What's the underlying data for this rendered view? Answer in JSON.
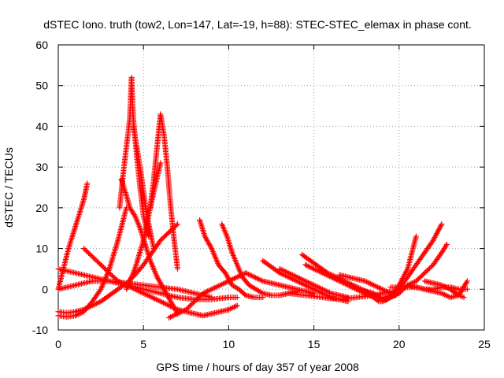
{
  "chart_data": {
    "type": "scatter",
    "title": "dSTEC Iono. truth (tow2, Lon=147, Lat=-19, h=88): STEC-STEC_elemax in phase cont.",
    "xlabel": "GPS time / hours of day 357 of year 2008",
    "ylabel": "dSTEC  / TECUs",
    "xlim": [
      0,
      25
    ],
    "ylim": [
      -10,
      60
    ],
    "xticks": [
      0,
      5,
      10,
      15,
      20,
      25
    ],
    "yticks": [
      -10,
      0,
      10,
      20,
      30,
      40,
      50,
      60
    ],
    "grid": true,
    "marker": "+",
    "color": "#ff0000",
    "series": [
      {
        "x": [
          0.0,
          0.3,
          0.6,
          0.9,
          1.2,
          1.5,
          1.7
        ],
        "y": [
          0.0,
          5.0,
          10.0,
          14.0,
          18.0,
          22.0,
          26.0
        ]
      },
      {
        "x": [
          0.0,
          0.5,
          1.0,
          1.5,
          2.0,
          2.5,
          3.0,
          3.5,
          4.0
        ],
        "y": [
          -6.5,
          -6.8,
          -6.5,
          -5.5,
          -3.0,
          0.0,
          5.0,
          12.0,
          20.0
        ]
      },
      {
        "x": [
          3.6,
          3.8,
          4.0,
          4.2,
          4.3,
          4.4,
          4.6,
          4.8,
          5.0,
          5.3
        ],
        "y": [
          20.0,
          28.0,
          35.0,
          42.0,
          52.0,
          42.0,
          33.0,
          25.0,
          18.0,
          13.0
        ]
      },
      {
        "x": [
          3.7,
          4.0,
          4.2,
          4.5,
          4.8,
          5.1,
          5.4,
          5.8,
          6.2,
          6.6,
          7.0
        ],
        "y": [
          27.0,
          23.0,
          20.0,
          18.0,
          15.0,
          11.0,
          7.0,
          3.0,
          0.0,
          -3.0,
          -6.0
        ]
      },
      {
        "x": [
          4.4,
          4.6,
          4.8,
          5.0,
          5.2,
          5.4,
          5.6
        ],
        "y": [
          40.0,
          35.0,
          30.0,
          24.0,
          18.0,
          14.0,
          10.0
        ]
      },
      {
        "x": [
          5.4,
          5.6,
          5.8,
          6.0,
          6.2,
          6.4,
          6.6,
          6.8,
          7.0
        ],
        "y": [
          20.0,
          27.0,
          35.0,
          43.0,
          38.0,
          30.0,
          20.0,
          12.0,
          5.0
        ]
      },
      {
        "x": [
          4.0,
          4.5,
          5.0,
          5.5,
          6.0
        ],
        "y": [
          0.0,
          5.0,
          12.0,
          22.0,
          31.0
        ]
      },
      {
        "x": [
          0.0,
          0.5,
          1.0,
          1.5,
          2.0,
          2.5,
          3.0,
          3.5,
          4.0,
          4.5,
          5.0,
          5.5,
          6.0,
          6.5,
          7.0
        ],
        "y": [
          -5.5,
          -5.8,
          -5.5,
          -5.0,
          -4.0,
          -3.0,
          -1.5,
          0.0,
          1.5,
          3.5,
          6.0,
          9.0,
          12.0,
          14.0,
          16.0
        ]
      },
      {
        "x": [
          0.0,
          1.0,
          2.0,
          3.0,
          4.0,
          5.0,
          6.0,
          7.0,
          8.0,
          9.0,
          10.0,
          10.5
        ],
        "y": [
          5.0,
          4.0,
          3.0,
          2.0,
          1.0,
          0.0,
          -1.0,
          -2.0,
          -2.5,
          -2.5,
          -2.0,
          -2.0
        ]
      },
      {
        "x": [
          1.5,
          2.0,
          2.5,
          3.0,
          3.5,
          4.0,
          4.5,
          5.0,
          5.5,
          6.0,
          6.5,
          7.0,
          7.5,
          8.0,
          8.5,
          9.0,
          9.5,
          10.0,
          10.5
        ],
        "y": [
          10.0,
          8.0,
          6.0,
          4.0,
          2.0,
          1.0,
          0.0,
          -1.0,
          -2.0,
          -3.0,
          -4.0,
          -5.0,
          -5.5,
          -6.0,
          -6.5,
          -6.0,
          -5.5,
          -5.0,
          -4.0
        ]
      },
      {
        "x": [
          0.0,
          1.0,
          2.0,
          3.0,
          4.0,
          5.0,
          6.0,
          7.0,
          8.0,
          9.0
        ],
        "y": [
          0.0,
          1.0,
          2.0,
          2.0,
          1.5,
          1.0,
          0.5,
          0.0,
          -1.0,
          -2.0
        ]
      },
      {
        "x": [
          6.5,
          7.0,
          7.5,
          8.0,
          8.5,
          9.0,
          9.5,
          10.0,
          10.5,
          11.0
        ],
        "y": [
          -7.0,
          -6.0,
          -5.0,
          -3.0,
          -1.0,
          0.0,
          1.0,
          2.0,
          3.0,
          4.0
        ]
      },
      {
        "x": [
          8.3,
          8.6,
          9.0,
          9.4,
          9.8,
          10.2,
          10.6,
          11.0,
          11.5,
          12.0
        ],
        "y": [
          17.0,
          13.0,
          10.0,
          6.0,
          4.0,
          1.0,
          0.0,
          -1.5,
          -2.0,
          -2.0
        ]
      },
      {
        "x": [
          9.6,
          9.9,
          10.2,
          10.5,
          10.8,
          11.2,
          11.6,
          12.0,
          12.5,
          13.0,
          13.5,
          14.0
        ],
        "y": [
          16.0,
          13.0,
          9.0,
          6.0,
          3.0,
          1.0,
          0.0,
          -1.0,
          -1.5,
          -1.5,
          -1.0,
          -0.5
        ]
      },
      {
        "x": [
          11.0,
          11.5,
          12.0,
          12.5,
          13.0,
          13.5,
          14.0,
          14.5,
          15.0
        ],
        "y": [
          4.0,
          3.0,
          2.0,
          1.5,
          1.0,
          0.5,
          0.0,
          -0.5,
          -1.0
        ]
      },
      {
        "x": [
          12.0,
          12.5,
          13.0,
          13.5,
          14.0,
          14.5,
          15.0,
          15.5,
          16.0,
          16.5,
          17.0
        ],
        "y": [
          7.0,
          5.5,
          4.0,
          3.0,
          2.0,
          1.0,
          0.0,
          -1.0,
          -2.0,
          -2.5,
          -3.0
        ]
      },
      {
        "x": [
          13.0,
          13.5,
          14.0,
          14.5,
          15.0,
          15.5,
          16.0,
          16.5,
          17.0
        ],
        "y": [
          5.0,
          4.0,
          3.0,
          2.0,
          1.0,
          0.0,
          -1.0,
          -1.5,
          -2.0
        ]
      },
      {
        "x": [
          14.3,
          14.8,
          15.3,
          15.8,
          16.3,
          16.8,
          17.3,
          17.8,
          18.3,
          18.8,
          19.3,
          19.8
        ],
        "y": [
          8.5,
          7.0,
          5.5,
          4.0,
          3.0,
          2.0,
          1.0,
          0.0,
          -1.0,
          -2.0,
          -2.0,
          -1.5
        ]
      },
      {
        "x": [
          14.5,
          15.0,
          15.5,
          16.0,
          16.5,
          17.0,
          17.5,
          18.0,
          18.5
        ],
        "y": [
          6.0,
          5.0,
          4.0,
          3.0,
          2.0,
          1.0,
          0.0,
          -0.5,
          -1.0
        ]
      },
      {
        "x": [
          13.5,
          14.5,
          15.5,
          16.5,
          17.5,
          18.5,
          19.0,
          19.5
        ],
        "y": [
          -1.0,
          -1.5,
          -2.0,
          -2.5,
          -2.0,
          -1.5,
          -1.0,
          -0.5
        ]
      },
      {
        "x": [
          16.5,
          17.0,
          17.5,
          18.0,
          18.5,
          19.0,
          19.5,
          20.0
        ],
        "y": [
          3.5,
          3.0,
          2.5,
          2.0,
          1.0,
          0.0,
          -1.0,
          -1.0
        ]
      },
      {
        "x": [
          17.0,
          17.5,
          18.0,
          18.5,
          18.8,
          19.0,
          19.3,
          19.6,
          20.0,
          20.5,
          21.0
        ],
        "y": [
          1.0,
          0.0,
          -1.0,
          -2.0,
          -3.0,
          -3.0,
          -2.5,
          -1.0,
          1.0,
          5.0,
          13.0
        ]
      },
      {
        "x": [
          18.5,
          19.0,
          19.5,
          20.0,
          20.5,
          21.0,
          21.5,
          22.0,
          22.5
        ],
        "y": [
          -1.0,
          -2.5,
          -2.0,
          0.0,
          3.0,
          6.0,
          9.0,
          12.0,
          16.0
        ]
      },
      {
        "x": [
          19.0,
          19.5,
          20.0,
          20.5,
          21.0,
          21.5,
          22.0,
          22.5,
          22.8
        ],
        "y": [
          -3.0,
          -2.0,
          -1.0,
          1.0,
          2.0,
          4.0,
          6.0,
          9.0,
          11.0
        ]
      },
      {
        "x": [
          19.5,
          20.0,
          20.5,
          21.0,
          21.5,
          22.0,
          22.5,
          23.0,
          23.5,
          24.0
        ],
        "y": [
          0.5,
          0.5,
          0.5,
          0.5,
          0.0,
          -0.5,
          -1.0,
          -2.0,
          -1.5,
          2.0
        ]
      },
      {
        "x": [
          20.5,
          21.0,
          21.5,
          22.0,
          22.5,
          23.0,
          23.5,
          24.0
        ],
        "y": [
          1.0,
          0.5,
          0.0,
          0.0,
          0.5,
          0.5,
          0.0,
          0.0
        ]
      },
      {
        "x": [
          21.5,
          22.0,
          22.5,
          23.0,
          23.5,
          23.8
        ],
        "y": [
          2.0,
          1.5,
          1.0,
          0.0,
          -1.5,
          -2.0
        ]
      }
    ]
  }
}
